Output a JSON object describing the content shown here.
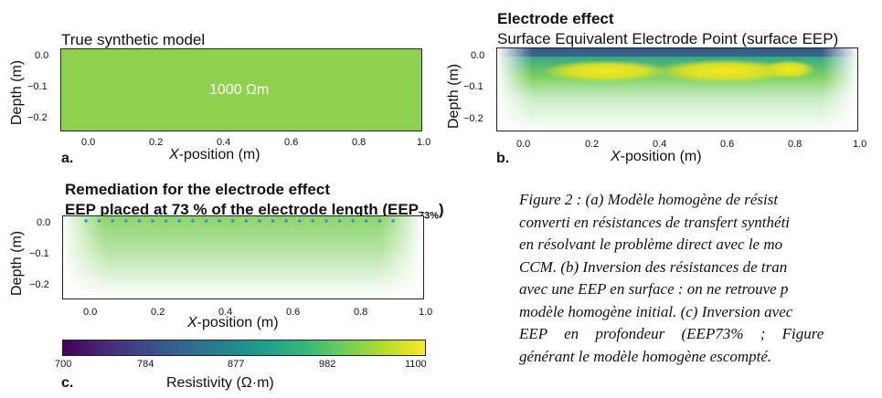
{
  "panel_a": {
    "title": "True synthetic model",
    "annotation": "1000 Ωm",
    "letter": "a.",
    "xlabel_prefix": "X",
    "xlabel_rest": "-position (m)",
    "ylabel": "Depth (m)",
    "fill_color": "#8fd14f"
  },
  "panel_b": {
    "title_line1": "Electrode effect",
    "title_line2": "Surface Equivalent Electrode Point (surface EEP)",
    "letter": "b.",
    "xlabel_prefix": "X",
    "xlabel_rest": "-position (m)",
    "ylabel": "Depth (m)"
  },
  "panel_c": {
    "title_line1": "Remediation for the electrode effect",
    "title_line2_main": "EEP placed at 73 % of the electrode length (EEP",
    "title_line2_sub": "73%",
    "title_line2_end": ")",
    "letter": "c.",
    "xlabel_prefix": "X",
    "xlabel_rest": "-position (m)",
    "ylabel": "Depth (m)",
    "electrode_color": "#3a8fd8"
  },
  "axes": {
    "x_ticks": [
      "0.0",
      "0.2",
      "0.4",
      "0.6",
      "0.8",
      "1.0"
    ],
    "y_ticks": [
      "0.0",
      "−0.1",
      "−0.2"
    ]
  },
  "colorbar": {
    "label": "Resistivity (Ω·m)",
    "ticks": [
      "700",
      "784",
      "877",
      "982",
      "1100"
    ],
    "colormap": "viridis"
  },
  "caption": {
    "lines": [
      "Figure 2 : (a) Modèle homogène de résist",
      "converti en résistances de transfert synthéti",
      "en résolvant le problème direct avec le mo",
      "CCM. (b) Inversion des résistances de tran",
      "avec une EEP en surface : on ne retrouve p",
      "modèle homogène initial. (c) Inversion avec",
      "EEP en profondeur (EEP73% ; Figure",
      "générant le modèle homogène escompté."
    ]
  },
  "chart_data": [
    {
      "type": "heatmap",
      "title": "True synthetic model",
      "xlabel": "X-position (m)",
      "ylabel": "Depth (m)",
      "xlim": [
        -0.05,
        1.0
      ],
      "ylim": [
        -0.22,
        0.02
      ],
      "x_ticks": [
        0.0,
        0.2,
        0.4,
        0.6,
        0.8,
        1.0
      ],
      "y_ticks": [
        0.0,
        -0.1,
        -0.2
      ],
      "values": "uniform 1000 Ωm"
    },
    {
      "type": "heatmap",
      "title": "Surface Equivalent Electrode Point (surface EEP)",
      "xlabel": "X-position (m)",
      "ylabel": "Depth (m)",
      "xlim": [
        -0.05,
        1.0
      ],
      "ylim": [
        -0.22,
        0.02
      ],
      "x_ticks": [
        0.0,
        0.2,
        0.4,
        0.6,
        0.8,
        1.0
      ],
      "y_ticks": [
        0.0,
        -0.1,
        -0.2
      ]
    },
    {
      "type": "heatmap",
      "title": "EEP placed at 73 % of the electrode length (EEP73%)",
      "xlabel": "X-position (m)",
      "ylabel": "Depth (m)",
      "xlim": [
        -0.05,
        1.0
      ],
      "ylim": [
        -0.22,
        0.02
      ],
      "x_ticks": [
        0.0,
        0.2,
        0.4,
        0.6,
        0.8,
        1.0
      ],
      "y_ticks": [
        0.0,
        -0.1,
        -0.2
      ],
      "colorbar_range": [
        700,
        1100
      ]
    }
  ]
}
